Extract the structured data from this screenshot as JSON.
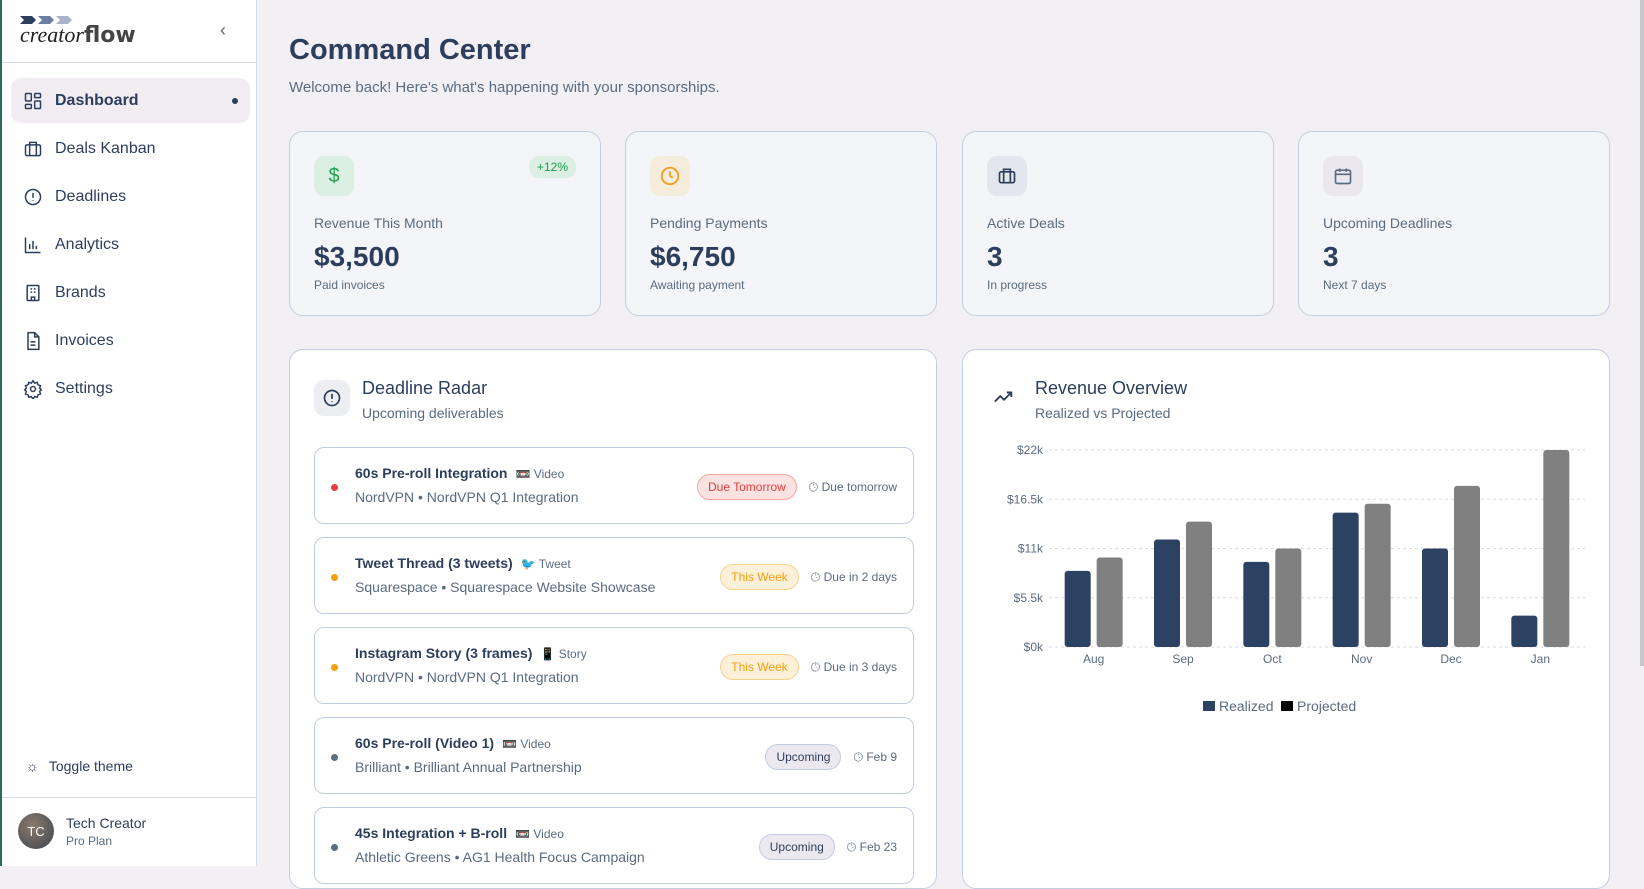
{
  "app": {
    "logo_text_a": "creator",
    "logo_text_b": "flow"
  },
  "sidebar": {
    "items": [
      {
        "label": "Dashboard"
      },
      {
        "label": "Deals Kanban"
      },
      {
        "label": "Deadlines"
      },
      {
        "label": "Analytics"
      },
      {
        "label": "Brands"
      },
      {
        "label": "Invoices"
      },
      {
        "label": "Settings"
      }
    ],
    "toggle_theme": "Toggle theme",
    "user": {
      "initials": "TC",
      "name": "Tech Creator",
      "plan": "Pro Plan"
    }
  },
  "header": {
    "title": "Command Center",
    "subtitle": "Welcome back! Here's what's happening with your sponsorships."
  },
  "stats": [
    {
      "label": "Revenue This Month",
      "value": "$3,500",
      "hint": "Paid invoices",
      "badge": "+12%",
      "icon": "dollar-icon",
      "color": "#1e9e4f"
    },
    {
      "label": "Pending Payments",
      "value": "$6,750",
      "hint": "Awaiting payment",
      "icon": "clock-icon",
      "color": "#f0a020"
    },
    {
      "label": "Active Deals",
      "value": "3",
      "hint": "In progress",
      "icon": "briefcase-icon",
      "color": "#2c3e5c"
    },
    {
      "label": "Upcoming Deadlines",
      "value": "3",
      "hint": "Next 7 days",
      "icon": "calendar-icon",
      "color": "#5a6b80"
    }
  ],
  "deadline_radar": {
    "title": "Deadline Radar",
    "subtitle": "Upcoming deliverables",
    "items": [
      {
        "title": "60s Pre-roll Integration",
        "type_icon": "📼",
        "type": "Video",
        "sub": "NordVPN • NordVPN Q1 Integration",
        "status": "Due Tomorrow",
        "due": "Due tomorrow",
        "dot": "#e53e3e"
      },
      {
        "title": "Tweet Thread (3 tweets)",
        "type_icon": "🐦",
        "type": "Tweet",
        "sub": "Squarespace • Squarespace Website Showcase",
        "status": "This Week",
        "due": "Due in 2 days",
        "dot": "#f59e0b"
      },
      {
        "title": "Instagram Story (3 frames)",
        "type_icon": "📱",
        "type": "Story",
        "sub": "NordVPN • NordVPN Q1 Integration",
        "status": "This Week",
        "due": "Due in 3 days",
        "dot": "#f59e0b"
      },
      {
        "title": "60s Pre-roll (Video 1)",
        "type_icon": "📼",
        "type": "Video",
        "sub": "Brilliant • Brilliant Annual Partnership",
        "status": "Upcoming",
        "due": "Feb 9",
        "dot": "#5a7080"
      },
      {
        "title": "45s Integration + B-roll",
        "type_icon": "📼",
        "type": "Video",
        "sub": "Athletic Greens • AG1 Health Focus Campaign",
        "status": "Upcoming",
        "due": "Feb 23",
        "dot": "#5a7080"
      }
    ]
  },
  "revenue": {
    "title": "Revenue Overview",
    "subtitle": "Realized vs Projected"
  },
  "chart_data": {
    "type": "bar",
    "categories": [
      "Aug",
      "Sep",
      "Oct",
      "Nov",
      "Dec",
      "Jan"
    ],
    "series": [
      {
        "name": "Realized",
        "values": [
          8.5,
          12,
          9.5,
          15,
          11,
          3.5
        ],
        "color": "#2c4262"
      },
      {
        "name": "Projected",
        "values": [
          10,
          14,
          11,
          16,
          18,
          22
        ],
        "color": "#808080"
      }
    ],
    "yticks": [
      "$0k",
      "$5.5k",
      "$11k",
      "$16.5k",
      "$22k"
    ],
    "ylim": [
      0,
      22
    ],
    "yunit": "thousands of $",
    "grid": true,
    "legend": "bottom",
    "legend_swatches": [
      "#2c4262",
      "#000000"
    ]
  }
}
